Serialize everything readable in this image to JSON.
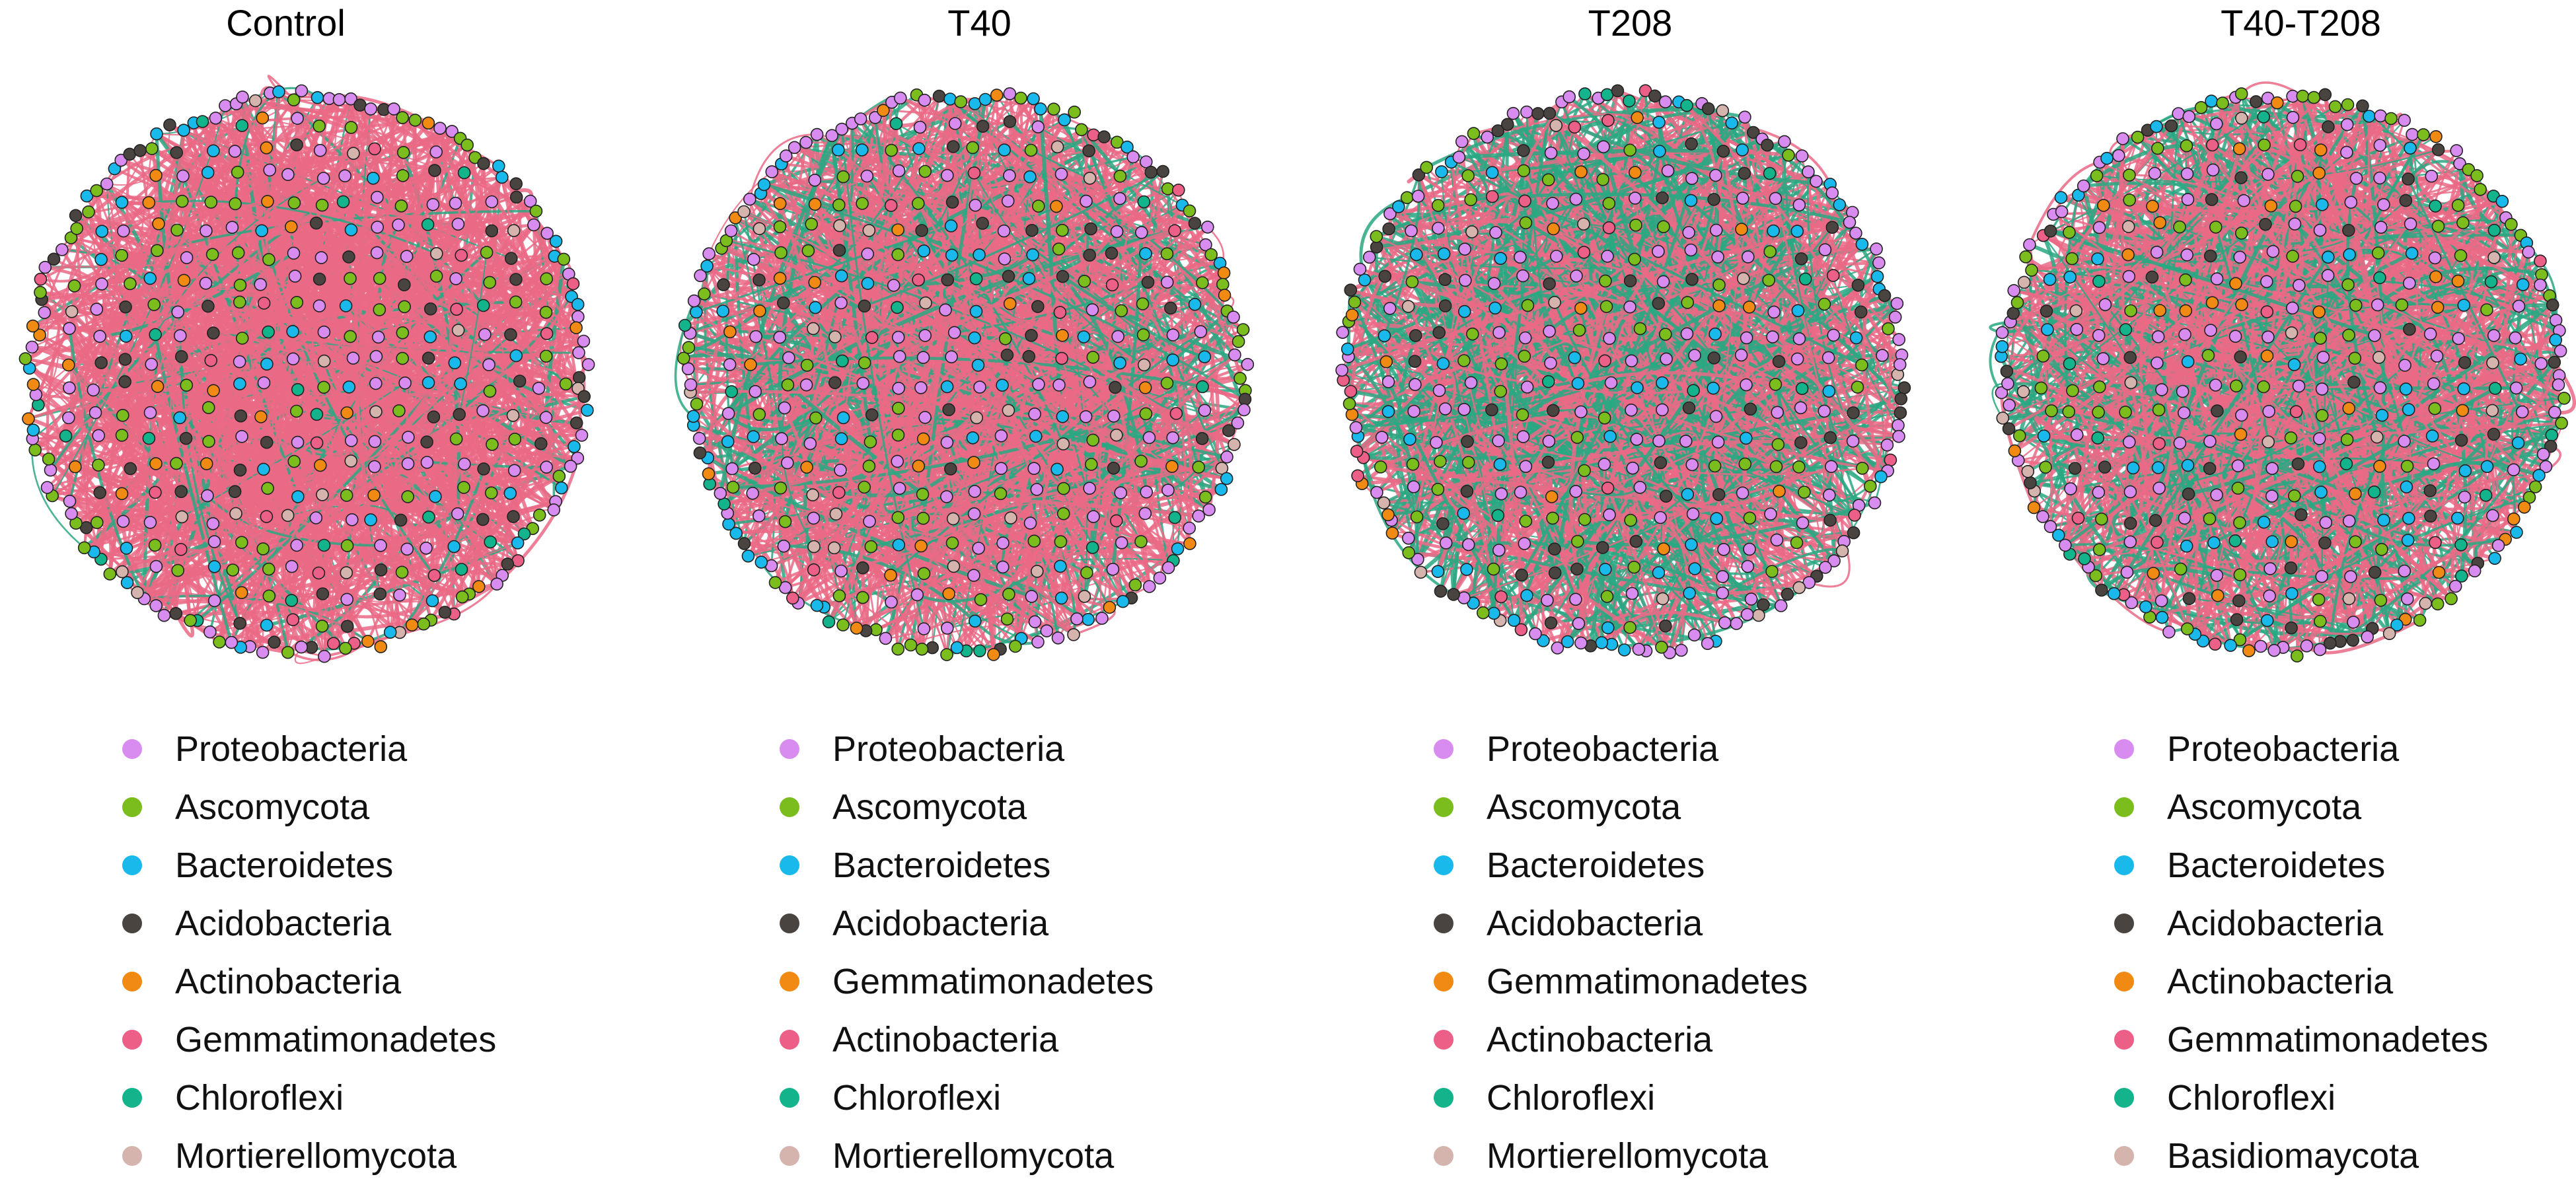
{
  "colors": {
    "Proteobacteria": "#d98cf0",
    "Ascomycota": "#7cbd1e",
    "Bacteroidetes": "#1ab9ec",
    "Acidobacteria": "#4a4440",
    "Actinobacteria": "#f08a12",
    "Gemmatimonadetes": "#ec5f86",
    "Chloroflexi": "#13b38c",
    "Mortierellomycota": "#d6b4ae",
    "Basidiomaycota": "#d6b4ae",
    "positive_edge": "#ea6a86",
    "negative_edge": "#2aa883"
  },
  "panels": [
    {
      "title": "Control",
      "legend": [
        {
          "label": "Proteobacteria",
          "color": "#d98cf0"
        },
        {
          "label": "Ascomycota",
          "color": "#7cbd1e"
        },
        {
          "label": "Bacteroidetes",
          "color": "#1ab9ec"
        },
        {
          "label": "Acidobacteria",
          "color": "#4a4440"
        },
        {
          "label": "Actinobacteria",
          "color": "#f08a12"
        },
        {
          "label": "Gemmatimonadetes",
          "color": "#ec5f86"
        },
        {
          "label": "Chloroflexi",
          "color": "#13b38c"
        },
        {
          "label": "Mortierellomycota",
          "color": "#d6b4ae"
        }
      ],
      "network": {
        "positive_share": 0.9
      }
    },
    {
      "title": "T40",
      "legend": [
        {
          "label": "Proteobacteria",
          "color": "#d98cf0"
        },
        {
          "label": "Ascomycota",
          "color": "#7cbd1e"
        },
        {
          "label": "Bacteroidetes",
          "color": "#1ab9ec"
        },
        {
          "label": "Acidobacteria",
          "color": "#4a4440"
        },
        {
          "label": "Gemmatimonadetes",
          "color": "#f08a12"
        },
        {
          "label": "Actinobacteria",
          "color": "#ec5f86"
        },
        {
          "label": "Chloroflexi",
          "color": "#13b38c"
        },
        {
          "label": "Mortierellomycota",
          "color": "#d6b4ae"
        }
      ],
      "network": {
        "positive_share": 0.72
      }
    },
    {
      "title": "T208",
      "legend": [
        {
          "label": "Proteobacteria",
          "color": "#d98cf0"
        },
        {
          "label": "Ascomycota",
          "color": "#7cbd1e"
        },
        {
          "label": "Bacteroidetes",
          "color": "#1ab9ec"
        },
        {
          "label": "Acidobacteria",
          "color": "#4a4440"
        },
        {
          "label": "Gemmatimonadetes",
          "color": "#f08a12"
        },
        {
          "label": "Actinobacteria",
          "color": "#ec5f86"
        },
        {
          "label": "Chloroflexi",
          "color": "#13b38c"
        },
        {
          "label": "Mortierellomycota",
          "color": "#d6b4ae"
        }
      ],
      "network": {
        "positive_share": 0.58
      }
    },
    {
      "title": "T40-T208",
      "legend": [
        {
          "label": "Proteobacteria",
          "color": "#d98cf0"
        },
        {
          "label": "Ascomycota",
          "color": "#7cbd1e"
        },
        {
          "label": "Bacteroidetes",
          "color": "#1ab9ec"
        },
        {
          "label": "Acidobacteria",
          "color": "#4a4440"
        },
        {
          "label": "Actinobacteria",
          "color": "#f08a12"
        },
        {
          "label": "Gemmatimonadetes",
          "color": "#ec5f86"
        },
        {
          "label": "Chloroflexi",
          "color": "#13b38c"
        },
        {
          "label": "Basidiomaycota",
          "color": "#d6b4ae"
        }
      ],
      "network": {
        "positive_share": 0.62
      }
    }
  ]
}
